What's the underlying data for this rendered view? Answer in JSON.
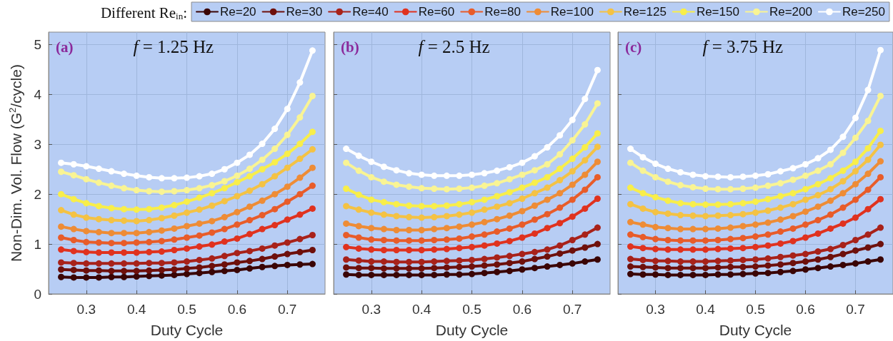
{
  "chart_data": [
    {
      "type": "line",
      "legend_title": "Different Re$_{in}$:",
      "legend": "top",
      "ylabel": "Non-Dim. Vol. Flow (G$^{2}$/cycle)",
      "xlabel": "Duty Cycle",
      "annotations": [
        "(a)",
        "f = 1.25 Hz"
      ],
      "grid": true,
      "marker": "circle",
      "line_style": "solid",
      "xlim": [
        0.225,
        0.775
      ],
      "xticks": [
        0.3,
        0.4,
        0.5,
        0.6,
        0.7
      ],
      "ylim": [
        0,
        5.25
      ],
      "yticks": [
        0,
        1,
        2,
        3,
        4,
        5
      ],
      "x": [
        0.25,
        0.275,
        0.3,
        0.325,
        0.35,
        0.375,
        0.4,
        0.425,
        0.45,
        0.475,
        0.5,
        0.525,
        0.55,
        0.575,
        0.6,
        0.625,
        0.65,
        0.675,
        0.7,
        0.725,
        0.75
      ],
      "series": [
        {
          "name": "Re=20",
          "color": "#3a0505",
          "values": [
            0.34,
            0.33,
            0.33,
            0.33,
            0.34,
            0.34,
            0.35,
            0.36,
            0.37,
            0.38,
            0.4,
            0.42,
            0.44,
            0.46,
            0.48,
            0.51,
            0.54,
            0.56,
            0.58,
            0.59,
            0.6
          ]
        },
        {
          "name": "Re=30",
          "color": "#6e100c",
          "values": [
            0.49,
            0.48,
            0.47,
            0.47,
            0.46,
            0.46,
            0.46,
            0.47,
            0.48,
            0.49,
            0.51,
            0.53,
            0.56,
            0.59,
            0.63,
            0.66,
            0.7,
            0.75,
            0.8,
            0.84,
            0.88
          ]
        },
        {
          "name": "Re=40",
          "color": "#a8221a",
          "values": [
            0.63,
            0.62,
            0.61,
            0.61,
            0.61,
            0.61,
            0.61,
            0.62,
            0.62,
            0.63,
            0.65,
            0.68,
            0.71,
            0.76,
            0.82,
            0.86,
            0.91,
            0.97,
            1.03,
            1.1,
            1.18
          ]
        },
        {
          "name": "Re=60",
          "color": "#e0321f",
          "values": [
            0.89,
            0.86,
            0.84,
            0.83,
            0.83,
            0.83,
            0.83,
            0.84,
            0.85,
            0.88,
            0.91,
            0.95,
            0.99,
            1.05,
            1.11,
            1.2,
            1.3,
            1.38,
            1.49,
            1.59,
            1.71
          ]
        },
        {
          "name": "Re=80",
          "color": "#e85c2a",
          "values": [
            1.13,
            1.08,
            1.04,
            1.03,
            1.02,
            1.02,
            1.03,
            1.04,
            1.06,
            1.09,
            1.13,
            1.17,
            1.23,
            1.3,
            1.39,
            1.48,
            1.58,
            1.7,
            1.85,
            2.0,
            2.17
          ]
        },
        {
          "name": "Re=100",
          "color": "#ee8c36",
          "values": [
            1.35,
            1.3,
            1.26,
            1.24,
            1.22,
            1.22,
            1.22,
            1.24,
            1.27,
            1.31,
            1.36,
            1.41,
            1.46,
            1.54,
            1.64,
            1.75,
            1.87,
            2.0,
            2.15,
            2.33,
            2.53
          ]
        },
        {
          "name": "Re=125",
          "color": "#f4c244",
          "values": [
            1.68,
            1.59,
            1.53,
            1.5,
            1.48,
            1.47,
            1.46,
            1.48,
            1.52,
            1.57,
            1.63,
            1.69,
            1.77,
            1.86,
            1.96,
            2.07,
            2.2,
            2.36,
            2.53,
            2.71,
            2.9
          ]
        },
        {
          "name": "Re=150",
          "color": "#f8ee4a",
          "values": [
            2.0,
            1.9,
            1.82,
            1.76,
            1.72,
            1.7,
            1.69,
            1.7,
            1.73,
            1.78,
            1.85,
            1.93,
            2.02,
            2.12,
            2.24,
            2.36,
            2.5,
            2.64,
            2.81,
            3.01,
            3.25
          ]
        },
        {
          "name": "Re=200",
          "color": "#f9f494",
          "values": [
            2.45,
            2.38,
            2.3,
            2.23,
            2.17,
            2.12,
            2.08,
            2.06,
            2.05,
            2.06,
            2.08,
            2.12,
            2.18,
            2.26,
            2.37,
            2.51,
            2.69,
            2.91,
            3.19,
            3.54,
            3.97
          ]
        },
        {
          "name": "Re=250",
          "color": "#ffffff",
          "values": [
            2.63,
            2.6,
            2.56,
            2.51,
            2.46,
            2.41,
            2.37,
            2.34,
            2.32,
            2.32,
            2.33,
            2.36,
            2.41,
            2.5,
            2.63,
            2.79,
            3.01,
            3.31,
            3.71,
            4.24,
            4.88
          ]
        }
      ]
    },
    {
      "type": "line",
      "xlabel": "Duty Cycle",
      "annotations": [
        "(b)",
        "f = 2.5 Hz"
      ],
      "grid": true,
      "marker": "circle",
      "line_style": "solid",
      "tick_labels": "x",
      "xlim": [
        0.225,
        0.775
      ],
      "xticks": [
        0.3,
        0.4,
        0.5,
        0.6,
        0.7
      ],
      "ylim": [
        0,
        5.25
      ],
      "yticks": [
        0,
        1,
        2,
        3,
        4,
        5
      ],
      "x": [
        0.25,
        0.275,
        0.3,
        0.325,
        0.35,
        0.375,
        0.4,
        0.425,
        0.45,
        0.475,
        0.5,
        0.525,
        0.55,
        0.575,
        0.6,
        0.625,
        0.65,
        0.675,
        0.7,
        0.725,
        0.75
      ],
      "series": [
        {
          "color": "#3a0505",
          "values": [
            0.39,
            0.38,
            0.38,
            0.38,
            0.38,
            0.38,
            0.38,
            0.38,
            0.39,
            0.39,
            0.4,
            0.42,
            0.44,
            0.46,
            0.49,
            0.52,
            0.55,
            0.58,
            0.61,
            0.65,
            0.69
          ]
        },
        {
          "color": "#6e100c",
          "values": [
            0.53,
            0.52,
            0.52,
            0.51,
            0.51,
            0.51,
            0.51,
            0.52,
            0.53,
            0.54,
            0.55,
            0.57,
            0.59,
            0.62,
            0.65,
            0.7,
            0.75,
            0.81,
            0.87,
            0.93,
            1.0
          ]
        },
        {
          "color": "#a8221a",
          "values": [
            0.69,
            0.67,
            0.65,
            0.65,
            0.64,
            0.64,
            0.64,
            0.65,
            0.66,
            0.67,
            0.68,
            0.7,
            0.73,
            0.76,
            0.8,
            0.84,
            0.89,
            0.97,
            1.08,
            1.19,
            1.33
          ]
        },
        {
          "color": "#e0321f",
          "values": [
            0.94,
            0.91,
            0.89,
            0.88,
            0.88,
            0.88,
            0.88,
            0.89,
            0.9,
            0.92,
            0.94,
            0.97,
            1.01,
            1.06,
            1.13,
            1.21,
            1.32,
            1.42,
            1.55,
            1.71,
            1.91
          ]
        },
        {
          "color": "#e85c2a",
          "values": [
            1.18,
            1.13,
            1.09,
            1.08,
            1.07,
            1.07,
            1.07,
            1.08,
            1.09,
            1.11,
            1.15,
            1.19,
            1.25,
            1.31,
            1.39,
            1.49,
            1.6,
            1.73,
            1.89,
            2.09,
            2.34
          ]
        },
        {
          "color": "#ee8c36",
          "values": [
            1.41,
            1.36,
            1.32,
            1.3,
            1.28,
            1.28,
            1.28,
            1.3,
            1.32,
            1.35,
            1.39,
            1.44,
            1.5,
            1.57,
            1.66,
            1.77,
            1.89,
            2.02,
            2.19,
            2.39,
            2.65
          ]
        },
        {
          "color": "#f4c244",
          "values": [
            1.76,
            1.69,
            1.63,
            1.59,
            1.56,
            1.54,
            1.53,
            1.54,
            1.56,
            1.59,
            1.63,
            1.69,
            1.75,
            1.82,
            1.91,
            2.02,
            2.13,
            2.28,
            2.46,
            2.68,
            2.95
          ]
        },
        {
          "color": "#f8ee4a",
          "values": [
            2.11,
            1.99,
            1.89,
            1.84,
            1.8,
            1.77,
            1.76,
            1.76,
            1.77,
            1.8,
            1.84,
            1.89,
            1.96,
            2.04,
            2.13,
            2.23,
            2.34,
            2.51,
            2.71,
            2.94,
            3.22
          ]
        },
        {
          "color": "#f9f494",
          "values": [
            2.63,
            2.47,
            2.34,
            2.25,
            2.19,
            2.15,
            2.12,
            2.11,
            2.1,
            2.11,
            2.13,
            2.17,
            2.22,
            2.3,
            2.39,
            2.48,
            2.6,
            2.8,
            3.08,
            3.4,
            3.82
          ]
        },
        {
          "color": "#ffffff",
          "values": [
            2.91,
            2.77,
            2.65,
            2.55,
            2.48,
            2.42,
            2.39,
            2.37,
            2.37,
            2.37,
            2.39,
            2.42,
            2.47,
            2.54,
            2.63,
            2.76,
            2.94,
            3.18,
            3.49,
            3.91,
            4.49
          ]
        }
      ]
    },
    {
      "type": "line",
      "xlabel": "Duty Cycle",
      "annotations": [
        "(c)",
        "f = 3.75 Hz"
      ],
      "grid": true,
      "marker": "circle",
      "line_style": "solid",
      "tick_labels": "x",
      "xlim": [
        0.225,
        0.775
      ],
      "xticks": [
        0.3,
        0.4,
        0.5,
        0.6,
        0.7
      ],
      "ylim": [
        0,
        5.25
      ],
      "yticks": [
        0,
        1,
        2,
        3,
        4,
        5
      ],
      "x": [
        0.25,
        0.275,
        0.3,
        0.325,
        0.35,
        0.375,
        0.4,
        0.425,
        0.45,
        0.475,
        0.5,
        0.525,
        0.55,
        0.575,
        0.6,
        0.625,
        0.65,
        0.675,
        0.7,
        0.725,
        0.75
      ],
      "series": [
        {
          "color": "#3a0505",
          "values": [
            0.4,
            0.39,
            0.39,
            0.38,
            0.38,
            0.38,
            0.38,
            0.39,
            0.39,
            0.4,
            0.41,
            0.42,
            0.44,
            0.46,
            0.49,
            0.52,
            0.55,
            0.58,
            0.61,
            0.65,
            0.69
          ]
        },
        {
          "color": "#6e100c",
          "values": [
            0.55,
            0.54,
            0.53,
            0.52,
            0.52,
            0.52,
            0.52,
            0.53,
            0.54,
            0.54,
            0.55,
            0.57,
            0.59,
            0.62,
            0.65,
            0.69,
            0.74,
            0.8,
            0.87,
            0.93,
            1.0
          ]
        },
        {
          "color": "#a8221a",
          "values": [
            0.7,
            0.68,
            0.66,
            0.66,
            0.65,
            0.65,
            0.65,
            0.66,
            0.67,
            0.68,
            0.69,
            0.71,
            0.74,
            0.77,
            0.8,
            0.85,
            0.9,
            0.98,
            1.08,
            1.19,
            1.33
          ]
        },
        {
          "color": "#e0321f",
          "values": [
            0.95,
            0.92,
            0.9,
            0.89,
            0.89,
            0.89,
            0.89,
            0.9,
            0.91,
            0.92,
            0.94,
            0.97,
            1.01,
            1.06,
            1.13,
            1.21,
            1.31,
            1.41,
            1.53,
            1.7,
            1.9
          ]
        },
        {
          "color": "#e85c2a",
          "values": [
            1.19,
            1.14,
            1.1,
            1.08,
            1.07,
            1.07,
            1.07,
            1.08,
            1.1,
            1.12,
            1.15,
            1.19,
            1.25,
            1.31,
            1.39,
            1.48,
            1.59,
            1.73,
            1.89,
            2.09,
            2.34
          ]
        },
        {
          "color": "#ee8c36",
          "values": [
            1.44,
            1.39,
            1.34,
            1.32,
            1.3,
            1.3,
            1.3,
            1.31,
            1.33,
            1.36,
            1.39,
            1.43,
            1.49,
            1.56,
            1.65,
            1.75,
            1.87,
            2.02,
            2.2,
            2.41,
            2.66
          ]
        },
        {
          "color": "#f4c244",
          "values": [
            1.8,
            1.71,
            1.64,
            1.61,
            1.58,
            1.57,
            1.56,
            1.57,
            1.58,
            1.6,
            1.63,
            1.67,
            1.73,
            1.8,
            1.89,
            1.98,
            2.1,
            2.26,
            2.46,
            2.69,
            2.99
          ]
        },
        {
          "color": "#f8ee4a",
          "values": [
            2.13,
            2.02,
            1.94,
            1.87,
            1.82,
            1.8,
            1.79,
            1.79,
            1.8,
            1.82,
            1.85,
            1.9,
            1.96,
            2.02,
            2.1,
            2.2,
            2.32,
            2.47,
            2.65,
            2.92,
            3.27
          ]
        },
        {
          "color": "#f9f494",
          "values": [
            2.63,
            2.47,
            2.34,
            2.25,
            2.18,
            2.14,
            2.11,
            2.1,
            2.1,
            2.11,
            2.13,
            2.17,
            2.22,
            2.29,
            2.37,
            2.47,
            2.6,
            2.83,
            3.13,
            3.47,
            3.97
          ]
        },
        {
          "color": "#ffffff",
          "values": [
            2.91,
            2.74,
            2.61,
            2.51,
            2.44,
            2.39,
            2.36,
            2.35,
            2.34,
            2.35,
            2.37,
            2.4,
            2.46,
            2.52,
            2.6,
            2.72,
            2.89,
            3.15,
            3.53,
            4.09,
            4.89
          ]
        }
      ]
    }
  ]
}
